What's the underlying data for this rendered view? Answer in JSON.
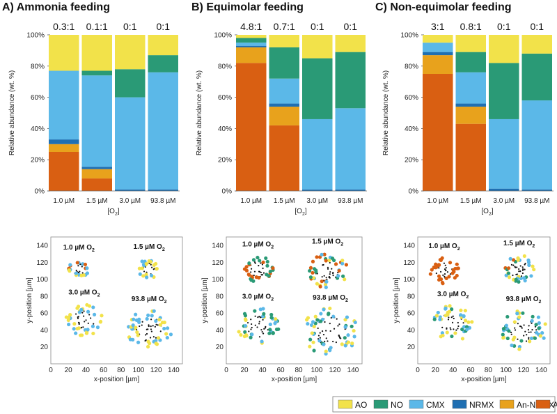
{
  "colors": {
    "AO": "#f2e24a",
    "NO": "#2a9a76",
    "CMX": "#5bb8e8",
    "NRMX": "#1f6fb2",
    "An-NRMX": "#e8a21c",
    "AMX": "#d95f12"
  },
  "legend": [
    {
      "key": "AO",
      "label": "AO"
    },
    {
      "key": "NO",
      "label": "NO"
    },
    {
      "key": "CMX",
      "label": "CMX"
    },
    {
      "key": "NRMX",
      "label": "NRMX"
    },
    {
      "key": "An-NRMX",
      "label": "An-NRMX"
    },
    {
      "key": "AMX",
      "label": "AMX"
    }
  ],
  "chart_data": [
    {
      "type": "bar",
      "title": "A) Ammonia feeding",
      "ratios": [
        "0.3:1",
        "0.1:1",
        "0:1",
        "0:1"
      ],
      "categories": [
        "1.0 µM",
        "1.5 µM",
        "3.0 µM",
        "93.8 µM"
      ],
      "xlabel": "[O2]",
      "ylabel": "Relative abundance (wt. %)",
      "ylim": [
        0,
        100
      ],
      "yticks": [
        "0%",
        "20%",
        "40%",
        "60%",
        "80%",
        "100%"
      ],
      "series": [
        {
          "name": "AMX",
          "values": [
            25,
            8,
            0,
            0
          ]
        },
        {
          "name": "An-NRMX",
          "values": [
            5,
            6,
            0,
            0
          ]
        },
        {
          "name": "NRMX",
          "values": [
            3,
            1.5,
            1,
            1
          ]
        },
        {
          "name": "CMX",
          "values": [
            44,
            58.5,
            59,
            75
          ]
        },
        {
          "name": "NO",
          "values": [
            0,
            3,
            18,
            11
          ]
        },
        {
          "name": "AO",
          "values": [
            23,
            23,
            22,
            13
          ]
        }
      ]
    },
    {
      "type": "bar",
      "title": "B) Equimolar feeding",
      "ratios": [
        "4.8:1",
        "0.7:1",
        "0:1",
        "0:1"
      ],
      "categories": [
        "1.0 µM",
        "1.5 µM",
        "3.0 µM",
        "93.8 µM"
      ],
      "xlabel": "[O2]",
      "ylabel": "Relative abundance (wt. %)",
      "ylim": [
        0,
        100
      ],
      "yticks": [
        "0%",
        "20%",
        "40%",
        "60%",
        "80%",
        "100%"
      ],
      "series": [
        {
          "name": "AMX",
          "values": [
            82,
            42,
            0,
            0
          ]
        },
        {
          "name": "An-NRMX",
          "values": [
            10,
            12,
            0,
            0
          ]
        },
        {
          "name": "NRMX",
          "values": [
            1,
            2,
            1,
            1
          ]
        },
        {
          "name": "CMX",
          "values": [
            2,
            16,
            45,
            52
          ]
        },
        {
          "name": "NO",
          "values": [
            3,
            20,
            39,
            36
          ]
        },
        {
          "name": "AO",
          "values": [
            2,
            8,
            15,
            11
          ]
        }
      ]
    },
    {
      "type": "bar",
      "title": "C) Non-equimolar feeding",
      "ratios": [
        "3:1",
        "0.8:1",
        "0:1",
        "0:1"
      ],
      "categories": [
        "1.0 µM",
        "1.5 µM",
        "3.0 µM",
        "93.8 µM"
      ],
      "xlabel": "[O2]",
      "ylabel": "Relative abundance (wt. %)",
      "ylim": [
        0,
        100
      ],
      "yticks": [
        "0%",
        "20%",
        "40%",
        "60%",
        "80%",
        "100%"
      ],
      "series": [
        {
          "name": "AMX",
          "values": [
            75,
            43,
            0,
            0
          ]
        },
        {
          "name": "An-NRMX",
          "values": [
            12,
            11,
            0,
            0
          ]
        },
        {
          "name": "NRMX",
          "values": [
            2,
            2,
            1.5,
            1
          ]
        },
        {
          "name": "CMX",
          "values": [
            6,
            20,
            44.5,
            57
          ]
        },
        {
          "name": "NO",
          "values": [
            0,
            13,
            36,
            30
          ]
        },
        {
          "name": "AO",
          "values": [
            5,
            11,
            18,
            12
          ]
        }
      ]
    },
    {
      "type": "scatter",
      "xlabel": "x-position [µm]",
      "ylabel": "y-position [µm]",
      "xlim": [
        0,
        150
      ],
      "ylim": [
        0,
        150
      ],
      "xticks": [
        "0",
        "20",
        "40",
        "60",
        "80",
        "100",
        "120",
        "140"
      ],
      "yticks": [
        "20",
        "40",
        "60",
        "80",
        "100",
        "120",
        "140"
      ],
      "panels": [
        {
          "clusters": [
            {
              "label": "1.0 µM O",
              "sub": "2",
              "cx": 32,
              "cy": 112,
              "spread": 9,
              "colors": [
                "AMX",
                "CMX",
                "AO",
                "NRMX"
              ]
            },
            {
              "label": "1.5 µM O",
              "sub": "2",
              "cx": 112,
              "cy": 112,
              "spread": 10,
              "colors": [
                "CMX",
                "AO"
              ]
            },
            {
              "label": "3.0 µM O",
              "sub": "2",
              "cx": 38,
              "cy": 52,
              "spread": 16,
              "colors": [
                "CMX",
                "AO"
              ]
            },
            {
              "label": "93.8 µM O",
              "sub": "2",
              "cx": 112,
              "cy": 40,
              "spread": 20,
              "colors": [
                "CMX",
                "AO"
              ]
            }
          ]
        },
        {
          "clusters": [
            {
              "label": "1.0 µM O",
              "sub": "2",
              "cx": 35,
              "cy": 112,
              "spread": 13,
              "colors": [
                "AMX",
                "NO"
              ]
            },
            {
              "label": "1.5 µM O",
              "sub": "2",
              "cx": 112,
              "cy": 110,
              "spread": 18,
              "colors": [
                "AMX",
                "CMX",
                "NO",
                "AO"
              ]
            },
            {
              "label": "3.0 µM O",
              "sub": "2",
              "cx": 35,
              "cy": 45,
              "spread": 18,
              "colors": [
                "CMX",
                "NO",
                "AO"
              ]
            },
            {
              "label": "93.8 µM O",
              "sub": "2",
              "cx": 115,
              "cy": 38,
              "spread": 24,
              "colors": [
                "CMX",
                "NO",
                "AO"
              ]
            }
          ]
        },
        {
          "clusters": [
            {
              "label": "1.0 µM O",
              "sub": "2",
              "cx": 30,
              "cy": 110,
              "spread": 13,
              "colors": [
                "AMX"
              ]
            },
            {
              "label": "1.5 µM O",
              "sub": "2",
              "cx": 115,
              "cy": 112,
              "spread": 14,
              "colors": [
                "AMX",
                "NO",
                "AO",
                "CMX"
              ]
            },
            {
              "label": "3.0 µM O",
              "sub": "2",
              "cx": 40,
              "cy": 48,
              "spread": 18,
              "colors": [
                "CMX",
                "NO",
                "AO"
              ]
            },
            {
              "label": "93.8 µM O",
              "sub": "2",
              "cx": 120,
              "cy": 40,
              "spread": 20,
              "colors": [
                "CMX",
                "NO",
                "AO"
              ]
            }
          ]
        }
      ]
    }
  ]
}
